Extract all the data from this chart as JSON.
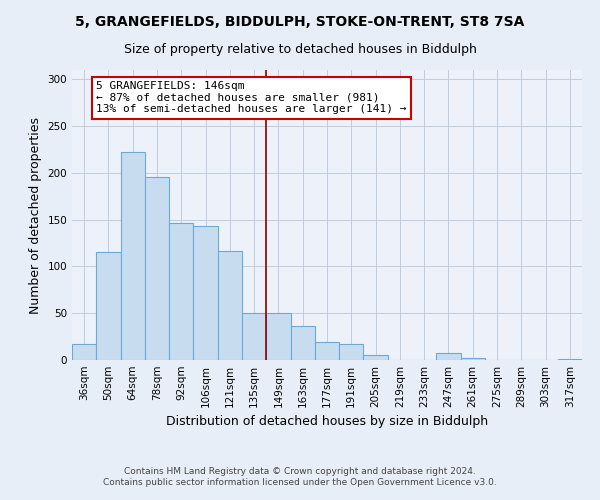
{
  "title1": "5, GRANGEFIELDS, BIDDULPH, STOKE-ON-TRENT, ST8 7SA",
  "title2": "Size of property relative to detached houses in Biddulph",
  "xlabel": "Distribution of detached houses by size in Biddulph",
  "ylabel": "Number of detached properties",
  "bar_labels": [
    "36sqm",
    "50sqm",
    "64sqm",
    "78sqm",
    "92sqm",
    "106sqm",
    "121sqm",
    "135sqm",
    "149sqm",
    "163sqm",
    "177sqm",
    "191sqm",
    "205sqm",
    "219sqm",
    "233sqm",
    "247sqm",
    "261sqm",
    "275sqm",
    "289sqm",
    "303sqm",
    "317sqm"
  ],
  "bar_values": [
    17,
    115,
    222,
    196,
    146,
    143,
    116,
    50,
    50,
    36,
    19,
    17,
    5,
    0,
    0,
    7,
    2,
    0,
    0,
    0,
    1
  ],
  "bar_color": "#c8dcf0",
  "bar_edge_color": "#6aaad4",
  "vline_color": "#8b0000",
  "vline_index": 8,
  "annotation_title": "5 GRANGEFIELDS: 146sqm",
  "annotation_line1": "← 87% of detached houses are smaller (981)",
  "annotation_line2": "13% of semi-detached houses are larger (141) →",
  "annotation_box_edge": "#cc0000",
  "ylim": [
    0,
    310
  ],
  "yticks": [
    0,
    50,
    100,
    150,
    200,
    250,
    300
  ],
  "footer1": "Contains HM Land Registry data © Crown copyright and database right 2024.",
  "footer2": "Contains public sector information licensed under the Open Government Licence v3.0.",
  "background_color": "#e8eef8",
  "plot_bg_color": "#edf2fa",
  "grid_color": "#c0cce0",
  "title_fontsize": 10,
  "subtitle_fontsize": 9,
  "axis_label_fontsize": 9,
  "tick_fontsize": 7.5,
  "annotation_fontsize": 8,
  "footer_fontsize": 6.5
}
